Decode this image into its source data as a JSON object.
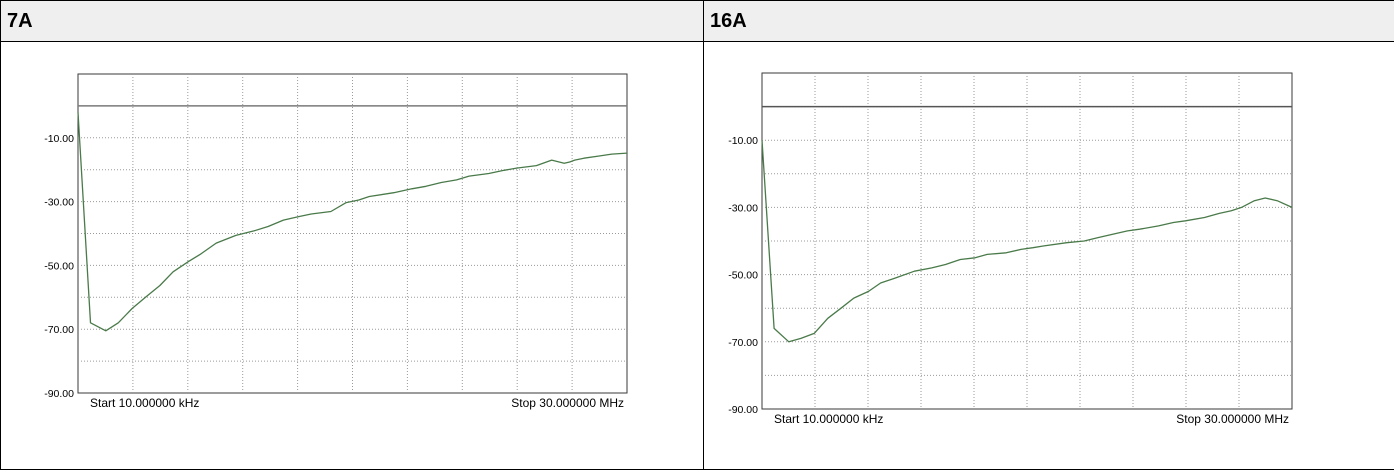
{
  "panels": [
    {
      "title": "7A"
    },
    {
      "title": "16A"
    }
  ],
  "chart_data": [
    {
      "type": "line",
      "xscale": "log",
      "x_start_label": "Start 10.000000 kHz",
      "x_stop_label": "Stop 30.000000 MHz",
      "ylim": [
        -90,
        10
      ],
      "yticks": [
        "-10.00",
        "-30.00",
        "-50.00",
        "-70.00",
        "-90.00"
      ],
      "grid": true,
      "line_color": "#4a7a4a",
      "reference_line": {
        "value": 0,
        "color": "#7a7a7a"
      },
      "series": [
        {
          "x": [
            "10 kHz",
            "12 kHz",
            "15 kHz",
            "18 kHz",
            "22 kHz",
            "27 kHz",
            "33 kHz",
            "40 kHz",
            "50 kHz",
            "60 kHz",
            "75 kHz",
            "100 kHz",
            "130 kHz",
            "160 kHz",
            "200 kHz",
            "250 kHz",
            "300 kHz",
            "400 kHz",
            "500 kHz",
            "600 kHz",
            "700 kHz",
            "1 MHz",
            "1.3 MHz",
            "1.6 MHz",
            "2 MHz",
            "2.5 MHz",
            "3 MHz",
            "4 MHz",
            "5 MHz",
            "6 MHz",
            "8 MHz",
            "10 MHz",
            "12 MHz",
            "13 MHz",
            "14 MHz",
            "16 MHz",
            "20 MHz",
            "24 MHz",
            "30 MHz"
          ],
          "y": [
            -2,
            -68,
            -70.5,
            -68,
            -63.5,
            -59.8,
            -56.3,
            -52,
            -48.8,
            -46.4,
            -43,
            -40.6,
            -39.2,
            -37.8,
            -35.8,
            -34.7,
            -33.9,
            -33.1,
            -30.3,
            -29.5,
            -28.4,
            -27.2,
            -26,
            -25.2,
            -24,
            -23.2,
            -22,
            -21.2,
            -20.2,
            -19.5,
            -18.7,
            -17,
            -18,
            -17.6,
            -17,
            -16.4,
            -15.7,
            -15.1,
            -14.8
          ]
        }
      ]
    },
    {
      "type": "line",
      "xscale": "log",
      "x_start_label": "Start 10.000000 kHz",
      "x_stop_label": "Stop 30.000000 MHz",
      "ylim": [
        -90,
        10
      ],
      "yticks": [
        "-10.00",
        "-30.00",
        "-50.00",
        "-70.00",
        "-90.00"
      ],
      "grid": true,
      "line_color": "#4a7a4a",
      "reference_line": {
        "value": 0,
        "color": "#555555"
      },
      "series": [
        {
          "x": [
            "10 kHz",
            "12 kHz",
            "15 kHz",
            "18 kHz",
            "22 kHz",
            "27 kHz",
            "33 kHz",
            "40 kHz",
            "50 kHz",
            "60 kHz",
            "75 kHz",
            "100 kHz",
            "130 kHz",
            "160 kHz",
            "200 kHz",
            "250 kHz",
            "300 kHz",
            "400 kHz",
            "500 kHz",
            "600 kHz",
            "700 kHz",
            "1 MHz",
            "1.3 MHz",
            "1.6 MHz",
            "2 MHz",
            "2.5 MHz",
            "3 MHz",
            "4 MHz",
            "5 MHz",
            "6 MHz",
            "8 MHz",
            "10 MHz",
            "12 MHz",
            "14 MHz",
            "17 MHz",
            "20 MHz",
            "24 MHz",
            "30 MHz"
          ],
          "y": [
            -10,
            -66,
            -70,
            -69,
            -67.5,
            -63,
            -60,
            -57,
            -55,
            -52.5,
            -51,
            -49,
            -48,
            -47,
            -45.5,
            -45,
            -44,
            -43.5,
            -42.5,
            -42,
            -41.5,
            -40.5,
            -40,
            -39,
            -38,
            -37,
            -36.5,
            -35.5,
            -34.5,
            -34,
            -33,
            -31.8,
            -31,
            -30,
            -28,
            -27.2,
            -28,
            -30
          ]
        }
      ]
    }
  ]
}
